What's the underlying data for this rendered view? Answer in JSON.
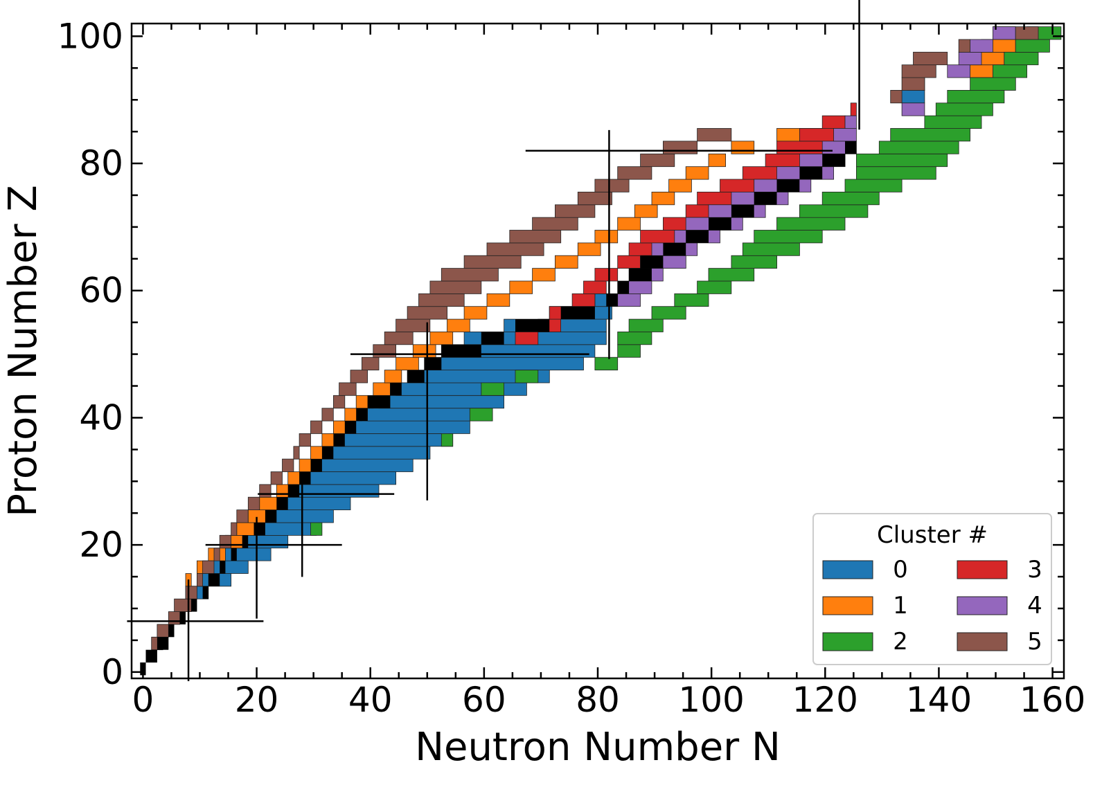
{
  "chart_data": {
    "type": "heatmap",
    "title": "",
    "xlabel": "Neutron Number N",
    "ylabel": "Proton Number Z",
    "xlim": [
      -2,
      162
    ],
    "ylim": [
      -1,
      102
    ],
    "x_ticks": [
      "0",
      "20",
      "40",
      "60",
      "80",
      "100",
      "120",
      "140",
      "160"
    ],
    "y_ticks": [
      "0",
      "20",
      "40",
      "60",
      "80",
      "100"
    ],
    "magic_numbers": [
      2,
      8,
      20,
      28,
      50,
      82,
      126
    ],
    "legend": {
      "title": "Cluster #",
      "placement": "lower-right",
      "entries": [
        {
          "label": "0",
          "color": "#1f77b4"
        },
        {
          "label": "1",
          "color": "#ff7f0e"
        },
        {
          "label": "2",
          "color": "#2ca02c"
        },
        {
          "label": "3",
          "color": "#d62728"
        },
        {
          "label": "4",
          "color": "#9467bd"
        },
        {
          "label": "5",
          "color": "#8c564b"
        }
      ]
    },
    "series": [
      {
        "cluster": 0,
        "color": "#1f77b4",
        "rows": [
          [
            12,
            8,
            12
          ],
          [
            14,
            10,
            16
          ],
          [
            16,
            12,
            19
          ],
          [
            18,
            14,
            23
          ],
          [
            20,
            16,
            26
          ],
          [
            22,
            19,
            31
          ],
          [
            24,
            22,
            34
          ],
          [
            26,
            24,
            37
          ],
          [
            28,
            27,
            42
          ],
          [
            30,
            29,
            45
          ],
          [
            32,
            31,
            48
          ],
          [
            34,
            33,
            51
          ],
          [
            36,
            35,
            55
          ],
          [
            38,
            37,
            58
          ],
          [
            40,
            40,
            61
          ],
          [
            42,
            42,
            64
          ],
          [
            44,
            45,
            68
          ],
          [
            46,
            47,
            72
          ],
          [
            48,
            50,
            78
          ],
          [
            50,
            53,
            80
          ],
          [
            52,
            57,
            82
          ],
          [
            54,
            64,
            82
          ],
          [
            56,
            72,
            83
          ],
          [
            58,
            80,
            84
          ],
          [
            90,
            134,
            138
          ],
          [
            92,
            135,
            138
          ]
        ]
      },
      {
        "cluster": 1,
        "color": "#ff7f0e",
        "rows": [
          [
            14,
            8,
            9
          ],
          [
            16,
            10,
            12
          ],
          [
            18,
            12,
            15
          ],
          [
            20,
            15,
            18
          ],
          [
            22,
            17,
            21
          ],
          [
            24,
            19,
            23
          ],
          [
            26,
            21,
            25
          ],
          [
            28,
            24,
            27
          ],
          [
            30,
            26,
            29
          ],
          [
            32,
            28,
            31
          ],
          [
            34,
            30,
            33
          ],
          [
            36,
            32,
            35
          ],
          [
            38,
            34,
            37
          ],
          [
            40,
            36,
            39
          ],
          [
            42,
            38,
            41
          ],
          [
            44,
            41,
            44
          ],
          [
            46,
            43,
            46
          ],
          [
            48,
            45,
            49
          ],
          [
            50,
            48,
            52
          ],
          [
            52,
            51,
            55
          ],
          [
            54,
            54,
            58
          ],
          [
            56,
            57,
            61
          ],
          [
            58,
            61,
            65
          ],
          [
            60,
            65,
            69
          ],
          [
            62,
            69,
            73
          ],
          [
            64,
            73,
            77
          ],
          [
            66,
            77,
            81
          ],
          [
            68,
            80,
            84
          ],
          [
            70,
            84,
            88
          ],
          [
            72,
            87,
            91
          ],
          [
            74,
            90,
            94
          ],
          [
            76,
            93,
            97
          ],
          [
            78,
            96,
            100
          ],
          [
            80,
            100,
            103
          ],
          [
            82,
            104,
            108
          ],
          [
            84,
            112,
            120
          ],
          [
            94,
            146,
            152
          ],
          [
            96,
            146,
            152
          ],
          [
            98,
            148,
            154
          ],
          [
            100,
            150,
            154
          ]
        ]
      },
      {
        "cluster": 2,
        "color": "#2ca02c",
        "rows": [
          [
            22,
            30,
            32
          ],
          [
            36,
            53,
            55
          ],
          [
            40,
            58,
            62
          ],
          [
            44,
            60,
            64
          ],
          [
            46,
            66,
            70
          ],
          [
            48,
            80,
            84
          ],
          [
            50,
            84,
            88
          ],
          [
            52,
            84,
            90
          ],
          [
            54,
            86,
            92
          ],
          [
            56,
            90,
            96
          ],
          [
            58,
            94,
            100
          ],
          [
            60,
            98,
            104
          ],
          [
            62,
            100,
            108
          ],
          [
            64,
            104,
            112
          ],
          [
            66,
            106,
            116
          ],
          [
            68,
            108,
            120
          ],
          [
            70,
            112,
            124
          ],
          [
            72,
            116,
            128
          ],
          [
            74,
            120,
            130
          ],
          [
            76,
            124,
            134
          ],
          [
            78,
            126,
            140
          ],
          [
            80,
            126,
            142
          ],
          [
            82,
            130,
            144
          ],
          [
            84,
            132,
            146
          ],
          [
            86,
            138,
            148
          ],
          [
            88,
            140,
            150
          ],
          [
            90,
            142,
            152
          ],
          [
            92,
            146,
            154
          ],
          [
            94,
            150,
            156
          ],
          [
            96,
            152,
            158
          ],
          [
            98,
            154,
            160
          ],
          [
            100,
            156,
            162
          ]
        ]
      },
      {
        "cluster": 3,
        "color": "#d62728",
        "rows": [
          [
            52,
            66,
            70
          ],
          [
            54,
            70,
            74
          ],
          [
            56,
            72,
            78
          ],
          [
            58,
            76,
            80
          ],
          [
            60,
            78,
            82
          ],
          [
            62,
            80,
            84
          ],
          [
            64,
            84,
            88
          ],
          [
            66,
            86,
            92
          ],
          [
            68,
            88,
            96
          ],
          [
            70,
            92,
            100
          ],
          [
            72,
            96,
            104
          ],
          [
            74,
            98,
            108
          ],
          [
            76,
            102,
            112
          ],
          [
            78,
            106,
            118
          ],
          [
            80,
            110,
            120
          ],
          [
            82,
            112,
            122
          ],
          [
            84,
            116,
            124
          ],
          [
            86,
            120,
            124
          ],
          [
            88,
            125,
            126
          ]
        ]
      },
      {
        "cluster": 4,
        "color": "#9467bd",
        "rows": [
          [
            58,
            84,
            88
          ],
          [
            60,
            84,
            90
          ],
          [
            62,
            86,
            92
          ],
          [
            64,
            88,
            96
          ],
          [
            66,
            90,
            98
          ],
          [
            68,
            94,
            102
          ],
          [
            70,
            96,
            106
          ],
          [
            72,
            100,
            110
          ],
          [
            74,
            104,
            114
          ],
          [
            76,
            108,
            118
          ],
          [
            78,
            112,
            122
          ],
          [
            80,
            116,
            124
          ],
          [
            82,
            120,
            126
          ],
          [
            84,
            122,
            126
          ],
          [
            86,
            124,
            126
          ],
          [
            88,
            134,
            138
          ],
          [
            94,
            142,
            146
          ],
          [
            96,
            144,
            148
          ],
          [
            98,
            146,
            150
          ],
          [
            100,
            150,
            154
          ]
        ]
      },
      {
        "cluster": 5,
        "color": "#8c564b",
        "rows": [
          [
            4,
            2,
            4
          ],
          [
            6,
            3,
            5
          ],
          [
            8,
            5,
            7
          ],
          [
            10,
            6,
            9
          ],
          [
            12,
            8,
            10
          ],
          [
            14,
            10,
            11
          ],
          [
            16,
            11,
            13
          ],
          [
            18,
            13,
            14
          ],
          [
            20,
            14,
            16
          ],
          [
            22,
            16,
            17
          ],
          [
            24,
            17,
            19
          ],
          [
            26,
            19,
            21
          ],
          [
            28,
            21,
            23
          ],
          [
            30,
            23,
            25
          ],
          [
            32,
            25,
            27
          ],
          [
            34,
            27,
            28
          ],
          [
            36,
            28,
            30
          ],
          [
            38,
            30,
            32
          ],
          [
            40,
            32,
            34
          ],
          [
            42,
            34,
            36
          ],
          [
            44,
            35,
            38
          ],
          [
            46,
            37,
            40
          ],
          [
            48,
            39,
            42
          ],
          [
            50,
            41,
            45
          ],
          [
            52,
            43,
            48
          ],
          [
            54,
            45,
            51
          ],
          [
            56,
            47,
            54
          ],
          [
            58,
            49,
            57
          ],
          [
            60,
            51,
            60
          ],
          [
            62,
            53,
            63
          ],
          [
            64,
            57,
            67
          ],
          [
            66,
            61,
            71
          ],
          [
            68,
            65,
            74
          ],
          [
            70,
            69,
            77
          ],
          [
            72,
            73,
            80
          ],
          [
            74,
            77,
            83
          ],
          [
            76,
            80,
            86
          ],
          [
            78,
            84,
            90
          ],
          [
            80,
            88,
            94
          ],
          [
            82,
            92,
            98
          ],
          [
            84,
            98,
            104
          ],
          [
            90,
            132,
            134
          ],
          [
            92,
            134,
            138
          ],
          [
            94,
            134,
            140
          ],
          [
            96,
            136,
            142
          ],
          [
            98,
            144,
            146
          ],
          [
            100,
            154,
            158
          ]
        ]
      },
      {
        "cluster": "stable",
        "color": "#000000",
        "rows": [
          [
            0,
            0,
            1
          ],
          [
            2,
            1,
            3
          ],
          [
            4,
            3,
            5
          ],
          [
            6,
            5,
            6
          ],
          [
            8,
            7,
            8
          ],
          [
            10,
            9,
            10
          ],
          [
            12,
            11,
            12
          ],
          [
            14,
            12,
            14
          ],
          [
            16,
            14,
            15
          ],
          [
            18,
            16,
            17
          ],
          [
            20,
            18,
            19
          ],
          [
            22,
            20,
            22
          ],
          [
            24,
            22,
            24
          ],
          [
            26,
            24,
            26
          ],
          [
            28,
            26,
            28
          ],
          [
            30,
            28,
            30
          ],
          [
            32,
            30,
            32
          ],
          [
            34,
            32,
            34
          ],
          [
            36,
            34,
            36
          ],
          [
            38,
            36,
            38
          ],
          [
            40,
            38,
            40
          ],
          [
            42,
            40,
            44
          ],
          [
            44,
            44,
            46
          ],
          [
            46,
            47,
            50
          ],
          [
            48,
            50,
            53
          ],
          [
            50,
            53,
            60
          ],
          [
            52,
            60,
            64
          ],
          [
            54,
            66,
            72
          ],
          [
            56,
            74,
            80
          ],
          [
            58,
            82,
            84
          ],
          [
            60,
            84,
            86
          ],
          [
            62,
            86,
            90
          ],
          [
            64,
            88,
            92
          ],
          [
            66,
            92,
            96
          ],
          [
            68,
            96,
            100
          ],
          [
            70,
            100,
            104
          ],
          [
            72,
            104,
            108
          ],
          [
            74,
            108,
            112
          ],
          [
            76,
            112,
            116
          ],
          [
            78,
            116,
            120
          ],
          [
            80,
            120,
            124
          ],
          [
            82,
            124,
            126
          ]
        ]
      }
    ]
  }
}
